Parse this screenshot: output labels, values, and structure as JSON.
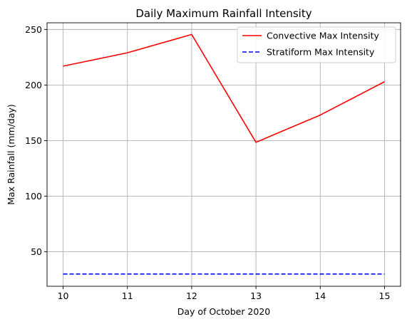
{
  "chart_data": {
    "type": "line",
    "title": "Daily Maximum Rainfall Intensity",
    "xlabel": "Day of October 2020",
    "ylabel": "Max Rainfall (mm/day)",
    "x": [
      10,
      11,
      12,
      13,
      14,
      15
    ],
    "xticks": [
      "10",
      "11",
      "12",
      "13",
      "14",
      "15"
    ],
    "yticks": [
      "50",
      "100",
      "150",
      "200",
      "250"
    ],
    "xlim": [
      9.75,
      15.25
    ],
    "ylim": [
      19,
      256
    ],
    "grid": true,
    "legend_position": "top-right",
    "series": [
      {
        "name": "Convective Max Intensity",
        "values": [
          217,
          229,
          245.5,
          148.5,
          173,
          203
        ],
        "color": "#ff0000",
        "style": "solid"
      },
      {
        "name": "Stratiform Max Intensity",
        "values": [
          30,
          30,
          30,
          30,
          30,
          30
        ],
        "color": "#0000ff",
        "style": "dashed"
      }
    ]
  }
}
